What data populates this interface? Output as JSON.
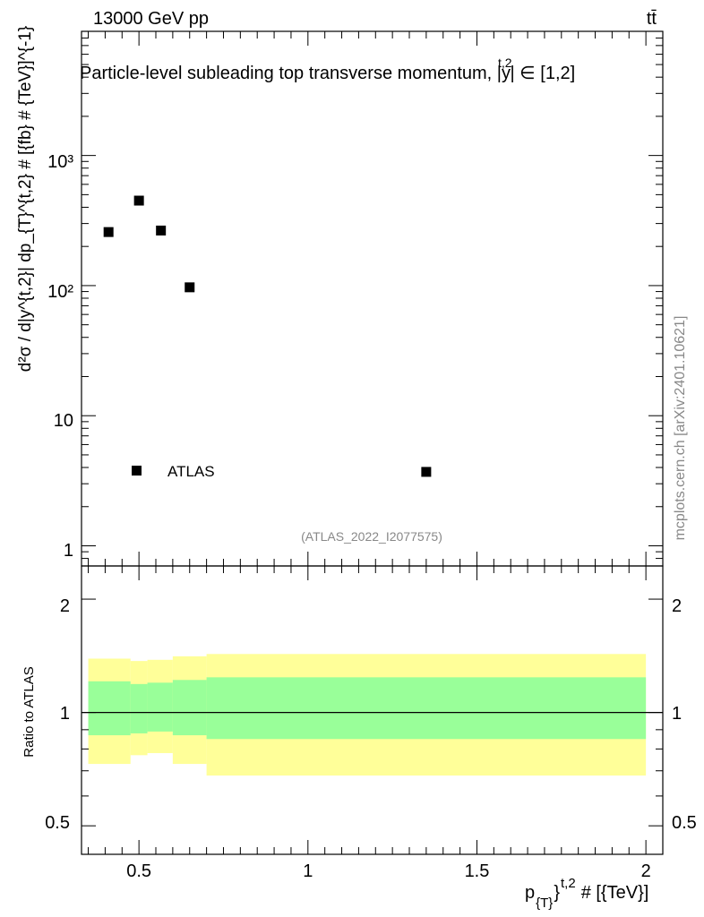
{
  "header": {
    "energy_label": "13000 GeV pp",
    "process_label": "tt̄"
  },
  "chart_data": [
    {
      "type": "scatter",
      "title_main": "Particle-level subleading top transverse momentum, |y",
      "title_sup": "t,2",
      "title_range": "| ∈ [1,2]",
      "ylabel": "d²σ / d|y^{t,2}| dp_{T}^{t,2} # [{fb} # {TeV}]^{-1}",
      "yscale": "log",
      "ylim": [
        0.7,
        9000
      ],
      "xlim": [
        0.33,
        2.05
      ],
      "ytick_labels": [
        "1",
        "10",
        "10²",
        "10³"
      ],
      "series": [
        {
          "name": "ATLAS",
          "x": [
            0.41,
            0.5,
            0.565,
            0.65,
            1.35
          ],
          "y": [
            258,
            450,
            265,
            97,
            3.7
          ]
        }
      ],
      "legend_label": "ATLAS",
      "annotation": "(ATLAS_2022_I2077575)"
    },
    {
      "type": "area",
      "ylabel": "Ratio to ATLAS",
      "yscale": "log",
      "ylim": [
        0.42,
        2.45
      ],
      "xlim": [
        0.33,
        2.05
      ],
      "ytick_labels": [
        "0.5",
        "1",
        "2"
      ],
      "reference_line": 1,
      "bins": [
        0.35,
        0.475,
        0.525,
        0.6,
        0.7,
        2.0
      ],
      "band_outer_upper": [
        1.39,
        1.37,
        1.38,
        1.41,
        1.43
      ],
      "band_outer_lower": [
        0.73,
        0.77,
        0.78,
        0.73,
        0.68
      ],
      "band_inner_upper": [
        1.21,
        1.19,
        1.2,
        1.22,
        1.24
      ],
      "band_inner_lower": [
        0.87,
        0.88,
        0.89,
        0.87,
        0.85
      ],
      "band_colors": {
        "outer": "#ffff99",
        "inner": "#99ff99"
      },
      "xtick_labels": [
        "0.5",
        "1",
        "1.5",
        "2"
      ],
      "xtick_values": [
        0.5,
        1,
        1.5,
        2
      ],
      "xlabel_main": "p",
      "xlabel_sub": "{T}",
      "xlabel_sup": "}",
      "xlabel_sup2": "t,2",
      "xlabel_unit": "# [{TeV}]"
    }
  ],
  "side_label": "mcplots.cern.ch [arXiv:2401.10621]"
}
